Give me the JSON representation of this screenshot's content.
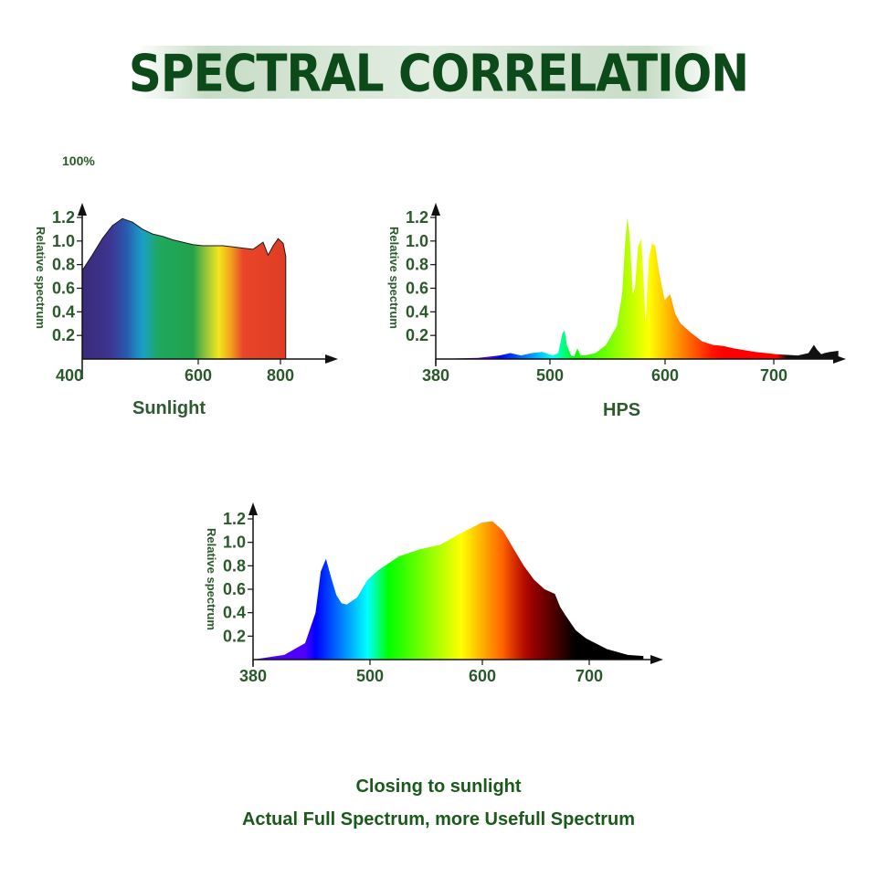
{
  "page": {
    "title": "SPECTRAL CORRELATION",
    "note_100": "100%",
    "caption_line1": "Closing to sunlight",
    "caption_line2": "Actual Full Spectrum, more Usefull Spectrum"
  },
  "chart_data": [
    {
      "id": "sunlight",
      "type": "area",
      "title": "Sunlight",
      "ylabel": "Relative spectrum",
      "xlabel": "",
      "xticks": [
        "400",
        "600",
        "800"
      ],
      "yticks": [
        "1.2",
        "1.0",
        "0.8",
        "0.6",
        "0.4",
        "0.2"
      ],
      "xlim": [
        400,
        800
      ],
      "ylim": [
        0,
        1.2
      ],
      "fill": "rainbow-gradient",
      "x": [
        400,
        420,
        440,
        460,
        480,
        500,
        520,
        540,
        560,
        580,
        600,
        620,
        640,
        660,
        680,
        700,
        720,
        740,
        760,
        770,
        780,
        790,
        800,
        805
      ],
      "values": [
        0.75,
        0.88,
        1.02,
        1.13,
        1.19,
        1.16,
        1.1,
        1.06,
        1.04,
        1.01,
        0.99,
        0.97,
        0.96,
        0.96,
        0.96,
        0.95,
        0.94,
        0.93,
        0.99,
        0.88,
        0.96,
        1.02,
        0.98,
        0.87
      ]
    },
    {
      "id": "hps",
      "type": "area",
      "title": "HPS",
      "ylabel": "Relative spectrum",
      "xlabel": "",
      "xticks": [
        "380",
        "500",
        "600",
        "700"
      ],
      "yticks": [
        "1.2",
        "1.0",
        "0.8",
        "0.6",
        "0.4",
        "0.2"
      ],
      "xlim": [
        380,
        760
      ],
      "ylim": [
        0,
        1.2
      ],
      "fill": "wavelength-color",
      "x": [
        380,
        420,
        440,
        450,
        455,
        460,
        470,
        480,
        490,
        495,
        499,
        501,
        503,
        507,
        510,
        513,
        516,
        520,
        530,
        540,
        550,
        555,
        558,
        560,
        562,
        565,
        567,
        570,
        573,
        575,
        577,
        580,
        583,
        586,
        590,
        595,
        600,
        605,
        610,
        620,
        630,
        640,
        650,
        660,
        680,
        700,
        720,
        730,
        735,
        738,
        742,
        745,
        750,
        758
      ],
      "values": [
        0.0,
        0.01,
        0.03,
        0.05,
        0.04,
        0.03,
        0.05,
        0.06,
        0.03,
        0.05,
        0.22,
        0.24,
        0.12,
        0.03,
        0.02,
        0.09,
        0.03,
        0.03,
        0.05,
        0.12,
        0.28,
        0.55,
        1.0,
        1.2,
        1.05,
        0.55,
        0.6,
        0.95,
        1.02,
        0.7,
        0.3,
        0.85,
        0.98,
        0.96,
        0.72,
        0.5,
        0.55,
        0.38,
        0.3,
        0.22,
        0.15,
        0.12,
        0.11,
        0.09,
        0.06,
        0.04,
        0.03,
        0.05,
        0.12,
        0.08,
        0.04,
        0.05,
        0.06,
        0.07
      ]
    },
    {
      "id": "full-spectrum",
      "type": "area",
      "title": "",
      "ylabel": "Relative spectrum",
      "xlabel": "",
      "xticks": [
        "380",
        "500",
        "600",
        "700"
      ],
      "yticks": [
        "1.2",
        "1.0",
        "0.8",
        "0.6",
        "0.4",
        "0.2"
      ],
      "xlim": [
        380,
        760
      ],
      "ylim": [
        0,
        1.2
      ],
      "fill": "wavelength-to-black",
      "x": [
        380,
        410,
        430,
        440,
        445,
        450,
        455,
        460,
        465,
        470,
        480,
        490,
        500,
        520,
        540,
        560,
        580,
        600,
        610,
        620,
        630,
        640,
        650,
        660,
        670,
        675,
        680,
        690,
        700,
        720,
        740,
        755
      ],
      "values": [
        0.0,
        0.04,
        0.14,
        0.4,
        0.75,
        0.86,
        0.7,
        0.55,
        0.48,
        0.47,
        0.53,
        0.68,
        0.76,
        0.88,
        0.94,
        0.98,
        1.08,
        1.17,
        1.18,
        1.1,
        0.95,
        0.8,
        0.68,
        0.6,
        0.56,
        0.45,
        0.38,
        0.25,
        0.18,
        0.09,
        0.04,
        0.03
      ]
    }
  ]
}
